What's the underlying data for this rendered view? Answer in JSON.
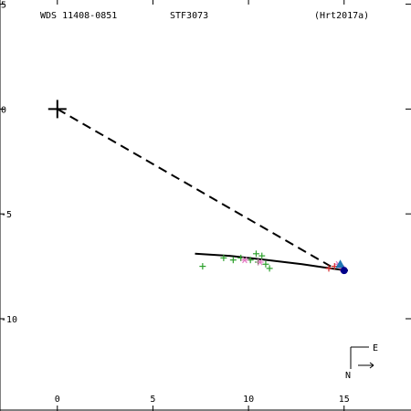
{
  "header": {
    "wds": "WDS 11408-0851",
    "name": "STF3073",
    "reference": "(Hrt2017a)"
  },
  "compass": {
    "east": "E",
    "north": "N"
  },
  "chart_data": {
    "type": "scatter",
    "title": "",
    "xlabel": "",
    "ylabel": "",
    "xlim": [
      -3,
      18.5
    ],
    "ylim": [
      -14.4,
      5.2
    ],
    "xticks": [
      0,
      5,
      10,
      15
    ],
    "yticks": [
      5,
      0,
      -5,
      -10
    ],
    "xtick_labels": [
      "0",
      "5",
      "10",
      "15"
    ],
    "ytick_labels": [
      "5",
      "0",
      "-5",
      "-10"
    ],
    "primary": {
      "x": 0,
      "y": 0,
      "marker": "plus",
      "color": "#000000"
    },
    "connector": {
      "from": [
        0,
        0
      ],
      "to": [
        14.3,
        -7.5
      ],
      "style": "dashed"
    },
    "orbit_fit": {
      "x": [
        7.2,
        9.0,
        11.0,
        12.8,
        14.3,
        15.2
      ],
      "y": [
        -6.9,
        -7.0,
        -7.2,
        -7.4,
        -7.6,
        -7.7
      ],
      "color": "#000000"
    },
    "series": [
      {
        "marker": "plus",
        "color": "#2ca02c",
        "x": [
          7.6,
          8.7,
          9.2,
          9.6,
          10.1,
          10.4,
          10.5,
          10.7,
          10.9,
          11.1
        ],
        "y": [
          -7.5,
          -7.1,
          -7.2,
          -7.1,
          -7.2,
          -6.9,
          -7.3,
          -7.0,
          -7.4,
          -7.6
        ]
      },
      {
        "marker": "asterisk",
        "color": "#e377c2",
        "x": [
          9.8,
          10.6,
          14.7,
          14.9
        ],
        "y": [
          -7.2,
          -7.3,
          -7.4,
          -7.6
        ]
      },
      {
        "marker": "plus",
        "color": "#d62728",
        "x": [
          14.2,
          14.5
        ],
        "y": [
          -7.6,
          -7.5
        ]
      },
      {
        "marker": "triangle",
        "color": "#1f77b4",
        "x": [
          14.8
        ],
        "y": [
          -7.4
        ]
      },
      {
        "marker": "circle",
        "color": "#00008b",
        "x": [
          15.0
        ],
        "y": [
          -7.7
        ]
      }
    ]
  }
}
